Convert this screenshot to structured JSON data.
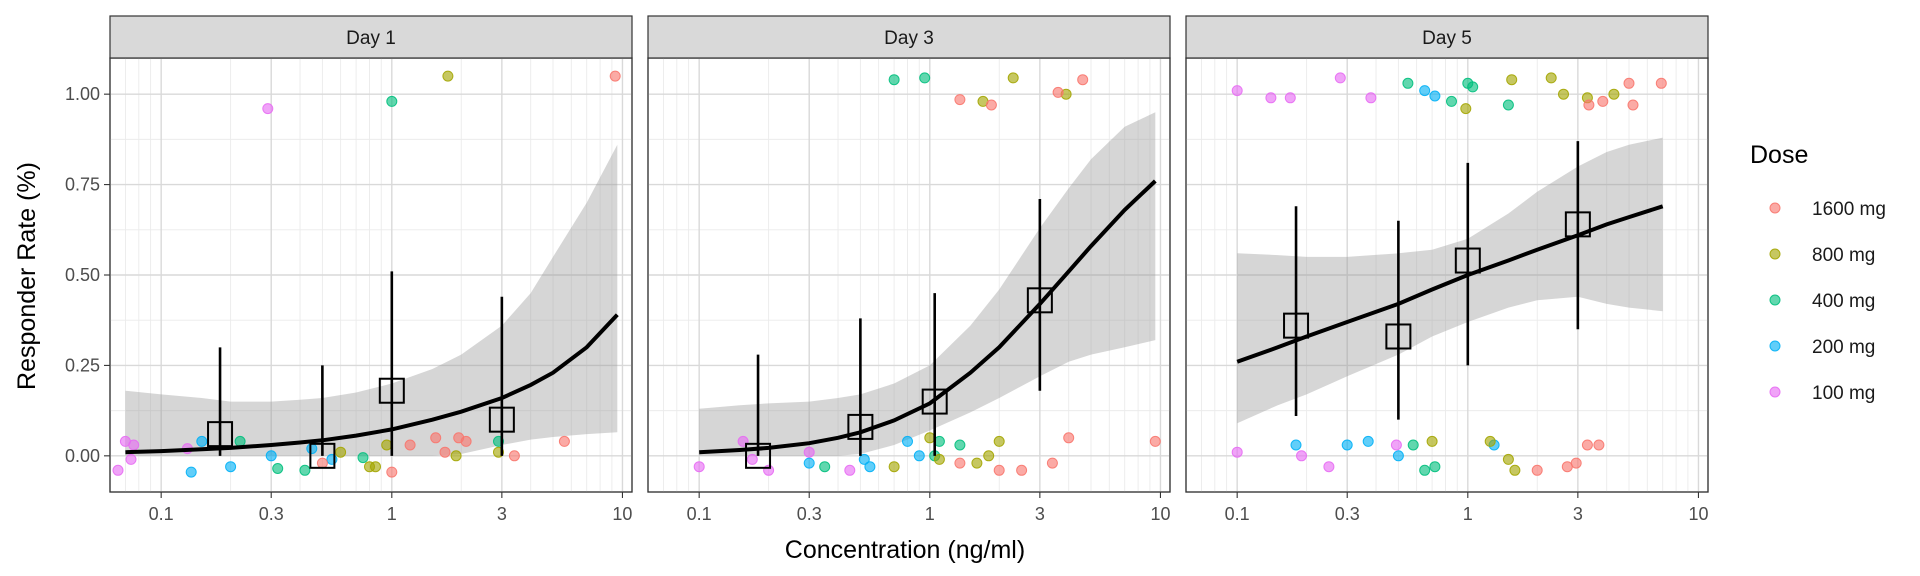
{
  "chart_data": {
    "type": "scatter",
    "xlabel": "Concentration (ng/ml)",
    "ylabel": "Responder Rate (%)",
    "x_scale": "log10",
    "xlim": [
      0.06,
      11
    ],
    "ylim": [
      -0.1,
      1.1
    ],
    "x_ticks": [
      0.1,
      0.3,
      1,
      3,
      10
    ],
    "x_tick_labels": [
      "0.1",
      "0.3",
      "1",
      "3",
      "10"
    ],
    "y_ticks": [
      0,
      0.25,
      0.5,
      0.75,
      1
    ],
    "y_tick_labels": [
      "0.00",
      "0.25",
      "0.50",
      "0.75",
      "1.00"
    ],
    "grid": true,
    "legend": {
      "title": "Dose",
      "position": "right",
      "entries": [
        {
          "label": "1600 mg",
          "color": "#F8766D"
        },
        {
          "label": "800 mg",
          "color": "#A3A500"
        },
        {
          "label": "400 mg",
          "color": "#00BF7D"
        },
        {
          "label": "200 mg",
          "color": "#00B0F6"
        },
        {
          "label": "100 mg",
          "color": "#E76BF3"
        }
      ]
    },
    "panels": [
      {
        "title": "Day 1",
        "fit": {
          "x": [
            0.07,
            0.1,
            0.15,
            0.2,
            0.3,
            0.4,
            0.5,
            0.7,
            1,
            1.5,
            2,
            3,
            4,
            5,
            7,
            9.5
          ],
          "y": [
            0.01,
            0.013,
            0.018,
            0.022,
            0.03,
            0.037,
            0.043,
            0.056,
            0.073,
            0.1,
            0.122,
            0.16,
            0.196,
            0.23,
            0.3,
            0.39
          ],
          "lower": [
            0.0,
            0.0,
            0.0,
            0.0,
            0.0,
            0.0,
            0.0,
            0.0,
            0.0,
            0.0,
            0.005,
            0.03,
            0.045,
            0.052,
            0.06,
            0.065
          ],
          "upper": [
            0.18,
            0.17,
            0.16,
            0.15,
            0.15,
            0.155,
            0.16,
            0.175,
            0.2,
            0.24,
            0.28,
            0.36,
            0.45,
            0.55,
            0.7,
            0.86
          ]
        },
        "observed": [
          {
            "x": 0.18,
            "y": 0.06,
            "lower": 0.0,
            "upper": 0.3
          },
          {
            "x": 0.5,
            "y": 0.0,
            "lower": 0.0,
            "upper": 0.25
          },
          {
            "x": 1.0,
            "y": 0.18,
            "lower": 0.0,
            "upper": 0.51
          },
          {
            "x": 3.0,
            "y": 0.1,
            "lower": 0.0,
            "upper": 0.44
          }
        ],
        "points": [
          {
            "x": 0.065,
            "y": -0.04,
            "dose": "100 mg"
          },
          {
            "x": 0.07,
            "y": 0.04,
            "dose": "100 mg"
          },
          {
            "x": 0.074,
            "y": -0.01,
            "dose": "100 mg"
          },
          {
            "x": 0.076,
            "y": 0.03,
            "dose": "100 mg"
          },
          {
            "x": 0.13,
            "y": 0.02,
            "dose": "100 mg"
          },
          {
            "x": 0.29,
            "y": 0.96,
            "dose": "100 mg"
          },
          {
            "x": 0.135,
            "y": -0.045,
            "dose": "200 mg"
          },
          {
            "x": 0.15,
            "y": 0.04,
            "dose": "200 mg"
          },
          {
            "x": 0.2,
            "y": -0.03,
            "dose": "200 mg"
          },
          {
            "x": 0.3,
            "y": 0.0,
            "dose": "200 mg"
          },
          {
            "x": 0.45,
            "y": 0.02,
            "dose": "200 mg"
          },
          {
            "x": 0.55,
            "y": -0.01,
            "dose": "200 mg"
          },
          {
            "x": 0.22,
            "y": 0.04,
            "dose": "400 mg"
          },
          {
            "x": 0.32,
            "y": -0.035,
            "dose": "400 mg"
          },
          {
            "x": 0.42,
            "y": -0.04,
            "dose": "400 mg"
          },
          {
            "x": 0.75,
            "y": -0.005,
            "dose": "400 mg"
          },
          {
            "x": 1.0,
            "y": 0.98,
            "dose": "400 mg"
          },
          {
            "x": 2.9,
            "y": 0.04,
            "dose": "400 mg"
          },
          {
            "x": 0.6,
            "y": 0.01,
            "dose": "800 mg"
          },
          {
            "x": 0.8,
            "y": -0.03,
            "dose": "800 mg"
          },
          {
            "x": 0.85,
            "y": -0.03,
            "dose": "800 mg"
          },
          {
            "x": 0.95,
            "y": 0.03,
            "dose": "800 mg"
          },
          {
            "x": 1.75,
            "y": 1.05,
            "dose": "800 mg"
          },
          {
            "x": 1.9,
            "y": 0.0,
            "dose": "800 mg"
          },
          {
            "x": 2.9,
            "y": 0.01,
            "dose": "800 mg"
          },
          {
            "x": 0.5,
            "y": -0.02,
            "dose": "1600 mg"
          },
          {
            "x": 1.0,
            "y": -0.045,
            "dose": "1600 mg"
          },
          {
            "x": 1.2,
            "y": 0.03,
            "dose": "1600 mg"
          },
          {
            "x": 1.55,
            "y": 0.05,
            "dose": "1600 mg"
          },
          {
            "x": 1.7,
            "y": 0.01,
            "dose": "1600 mg"
          },
          {
            "x": 1.95,
            "y": 0.05,
            "dose": "1600 mg"
          },
          {
            "x": 2.1,
            "y": 0.04,
            "dose": "1600 mg"
          },
          {
            "x": 3.4,
            "y": 0.0,
            "dose": "1600 mg"
          },
          {
            "x": 5.6,
            "y": 0.04,
            "dose": "1600 mg"
          },
          {
            "x": 9.3,
            "y": 1.05,
            "dose": "1600 mg"
          }
        ]
      },
      {
        "title": "Day 3",
        "fit": {
          "x": [
            0.1,
            0.15,
            0.2,
            0.3,
            0.4,
            0.5,
            0.7,
            1,
            1.5,
            2,
            3,
            4,
            5,
            7,
            9.5
          ],
          "y": [
            0.01,
            0.016,
            0.022,
            0.035,
            0.05,
            0.065,
            0.098,
            0.145,
            0.23,
            0.3,
            0.42,
            0.51,
            0.58,
            0.68,
            0.76
          ],
          "lower": [
            0.0,
            0.0,
            0.0,
            0.0,
            0.0,
            0.005,
            0.03,
            0.07,
            0.12,
            0.16,
            0.22,
            0.26,
            0.28,
            0.3,
            0.32
          ],
          "upper": [
            0.13,
            0.14,
            0.145,
            0.15,
            0.16,
            0.17,
            0.2,
            0.25,
            0.36,
            0.46,
            0.63,
            0.74,
            0.82,
            0.91,
            0.95
          ]
        },
        "observed": [
          {
            "x": 0.18,
            "y": 0.0,
            "lower": 0.0,
            "upper": 0.28
          },
          {
            "x": 0.5,
            "y": 0.08,
            "lower": 0.0,
            "upper": 0.38
          },
          {
            "x": 1.05,
            "y": 0.15,
            "lower": 0.0,
            "upper": 0.45
          },
          {
            "x": 3.0,
            "y": 0.43,
            "lower": 0.18,
            "upper": 0.71
          }
        ],
        "points": [
          {
            "x": 0.1,
            "y": -0.03,
            "dose": "100 mg"
          },
          {
            "x": 0.155,
            "y": 0.04,
            "dose": "100 mg"
          },
          {
            "x": 0.17,
            "y": -0.01,
            "dose": "100 mg"
          },
          {
            "x": 0.2,
            "y": -0.04,
            "dose": "100 mg"
          },
          {
            "x": 0.3,
            "y": 0.01,
            "dose": "100 mg"
          },
          {
            "x": 0.45,
            "y": -0.04,
            "dose": "100 mg"
          },
          {
            "x": 0.3,
            "y": -0.02,
            "dose": "200 mg"
          },
          {
            "x": 0.52,
            "y": -0.01,
            "dose": "200 mg"
          },
          {
            "x": 0.55,
            "y": -0.03,
            "dose": "200 mg"
          },
          {
            "x": 0.8,
            "y": 0.04,
            "dose": "200 mg"
          },
          {
            "x": 0.9,
            "y": 0.0,
            "dose": "200 mg"
          },
          {
            "x": 0.35,
            "y": -0.03,
            "dose": "400 mg"
          },
          {
            "x": 0.7,
            "y": 1.04,
            "dose": "400 mg"
          },
          {
            "x": 0.95,
            "y": 1.045,
            "dose": "400 mg"
          },
          {
            "x": 1.05,
            "y": 0.0,
            "dose": "400 mg"
          },
          {
            "x": 1.1,
            "y": 0.04,
            "dose": "400 mg"
          },
          {
            "x": 1.35,
            "y": 0.03,
            "dose": "400 mg"
          },
          {
            "x": 0.7,
            "y": -0.03,
            "dose": "800 mg"
          },
          {
            "x": 1.0,
            "y": 0.05,
            "dose": "800 mg"
          },
          {
            "x": 1.1,
            "y": -0.01,
            "dose": "800 mg"
          },
          {
            "x": 1.6,
            "y": -0.02,
            "dose": "800 mg"
          },
          {
            "x": 1.8,
            "y": 0.0,
            "dose": "800 mg"
          },
          {
            "x": 2.0,
            "y": 0.04,
            "dose": "800 mg"
          },
          {
            "x": 2.3,
            "y": 1.045,
            "dose": "800 mg"
          },
          {
            "x": 1.7,
            "y": 0.98,
            "dose": "800 mg"
          },
          {
            "x": 3.9,
            "y": 1.0,
            "dose": "800 mg"
          },
          {
            "x": 1.35,
            "y": 0.985,
            "dose": "1600 mg"
          },
          {
            "x": 1.35,
            "y": -0.02,
            "dose": "1600 mg"
          },
          {
            "x": 1.85,
            "y": 0.97,
            "dose": "1600 mg"
          },
          {
            "x": 2.0,
            "y": -0.04,
            "dose": "1600 mg"
          },
          {
            "x": 2.5,
            "y": -0.04,
            "dose": "1600 mg"
          },
          {
            "x": 3.4,
            "y": -0.02,
            "dose": "1600 mg"
          },
          {
            "x": 3.6,
            "y": 1.005,
            "dose": "1600 mg"
          },
          {
            "x": 4.0,
            "y": 0.05,
            "dose": "1600 mg"
          },
          {
            "x": 4.6,
            "y": 1.04,
            "dose": "1600 mg"
          },
          {
            "x": 9.5,
            "y": 0.04,
            "dose": "1600 mg"
          }
        ]
      },
      {
        "title": "Day 5",
        "fit": {
          "x": [
            0.1,
            0.15,
            0.2,
            0.3,
            0.5,
            0.7,
            1,
            1.5,
            2,
            3,
            4,
            5,
            7
          ],
          "y": [
            0.26,
            0.3,
            0.33,
            0.37,
            0.42,
            0.46,
            0.5,
            0.54,
            0.57,
            0.61,
            0.64,
            0.66,
            0.69
          ],
          "lower": [
            0.09,
            0.14,
            0.17,
            0.22,
            0.28,
            0.33,
            0.37,
            0.41,
            0.43,
            0.44,
            0.42,
            0.41,
            0.4
          ],
          "upper": [
            0.56,
            0.555,
            0.55,
            0.55,
            0.56,
            0.57,
            0.6,
            0.67,
            0.73,
            0.8,
            0.84,
            0.86,
            0.88
          ]
        },
        "observed": [
          {
            "x": 0.18,
            "y": 0.36,
            "lower": 0.11,
            "upper": 0.69
          },
          {
            "x": 0.5,
            "y": 0.33,
            "lower": 0.1,
            "upper": 0.65
          },
          {
            "x": 1.0,
            "y": 0.54,
            "lower": 0.25,
            "upper": 0.81
          },
          {
            "x": 3.0,
            "y": 0.64,
            "lower": 0.35,
            "upper": 0.87
          }
        ],
        "points": [
          {
            "x": 0.1,
            "y": 1.01,
            "dose": "100 mg"
          },
          {
            "x": 0.1,
            "y": 0.01,
            "dose": "100 mg"
          },
          {
            "x": 0.14,
            "y": 0.99,
            "dose": "100 mg"
          },
          {
            "x": 0.17,
            "y": 0.99,
            "dose": "100 mg"
          },
          {
            "x": 0.19,
            "y": 0.0,
            "dose": "100 mg"
          },
          {
            "x": 0.25,
            "y": -0.03,
            "dose": "100 mg"
          },
          {
            "x": 0.28,
            "y": 1.045,
            "dose": "100 mg"
          },
          {
            "x": 0.38,
            "y": 0.99,
            "dose": "100 mg"
          },
          {
            "x": 0.49,
            "y": 0.03,
            "dose": "100 mg"
          },
          {
            "x": 0.18,
            "y": 0.03,
            "dose": "200 mg"
          },
          {
            "x": 0.3,
            "y": 0.03,
            "dose": "200 mg"
          },
          {
            "x": 0.37,
            "y": 0.04,
            "dose": "200 mg"
          },
          {
            "x": 0.5,
            "y": 0.0,
            "dose": "200 mg"
          },
          {
            "x": 0.65,
            "y": 1.01,
            "dose": "200 mg"
          },
          {
            "x": 0.72,
            "y": 0.995,
            "dose": "200 mg"
          },
          {
            "x": 1.3,
            "y": 0.03,
            "dose": "200 mg"
          },
          {
            "x": 0.55,
            "y": 1.03,
            "dose": "400 mg"
          },
          {
            "x": 0.58,
            "y": 0.03,
            "dose": "400 mg"
          },
          {
            "x": 0.65,
            "y": -0.04,
            "dose": "400 mg"
          },
          {
            "x": 0.72,
            "y": -0.03,
            "dose": "400 mg"
          },
          {
            "x": 0.85,
            "y": 0.98,
            "dose": "400 mg"
          },
          {
            "x": 1.0,
            "y": 1.03,
            "dose": "400 mg"
          },
          {
            "x": 1.05,
            "y": 1.02,
            "dose": "400 mg"
          },
          {
            "x": 1.5,
            "y": 0.97,
            "dose": "400 mg"
          },
          {
            "x": 0.7,
            "y": 0.04,
            "dose": "800 mg"
          },
          {
            "x": 0.98,
            "y": 0.96,
            "dose": "800 mg"
          },
          {
            "x": 1.25,
            "y": 0.04,
            "dose": "800 mg"
          },
          {
            "x": 1.5,
            "y": -0.01,
            "dose": "800 mg"
          },
          {
            "x": 1.55,
            "y": 1.04,
            "dose": "800 mg"
          },
          {
            "x": 1.6,
            "y": -0.04,
            "dose": "800 mg"
          },
          {
            "x": 2.3,
            "y": 1.045,
            "dose": "800 mg"
          },
          {
            "x": 2.6,
            "y": 1.0,
            "dose": "800 mg"
          },
          {
            "x": 3.3,
            "y": 0.99,
            "dose": "800 mg"
          },
          {
            "x": 4.3,
            "y": 1.0,
            "dose": "800 mg"
          },
          {
            "x": 2.0,
            "y": -0.04,
            "dose": "1600 mg"
          },
          {
            "x": 2.7,
            "y": -0.03,
            "dose": "1600 mg"
          },
          {
            "x": 2.95,
            "y": -0.02,
            "dose": "1600 mg"
          },
          {
            "x": 3.3,
            "y": 0.03,
            "dose": "1600 mg"
          },
          {
            "x": 3.35,
            "y": 0.97,
            "dose": "1600 mg"
          },
          {
            "x": 3.7,
            "y": 0.03,
            "dose": "1600 mg"
          },
          {
            "x": 3.85,
            "y": 0.98,
            "dose": "1600 mg"
          },
          {
            "x": 5.0,
            "y": 1.03,
            "dose": "1600 mg"
          },
          {
            "x": 5.2,
            "y": 0.97,
            "dose": "1600 mg"
          },
          {
            "x": 6.9,
            "y": 1.03,
            "dose": "1600 mg"
          }
        ]
      }
    ]
  }
}
